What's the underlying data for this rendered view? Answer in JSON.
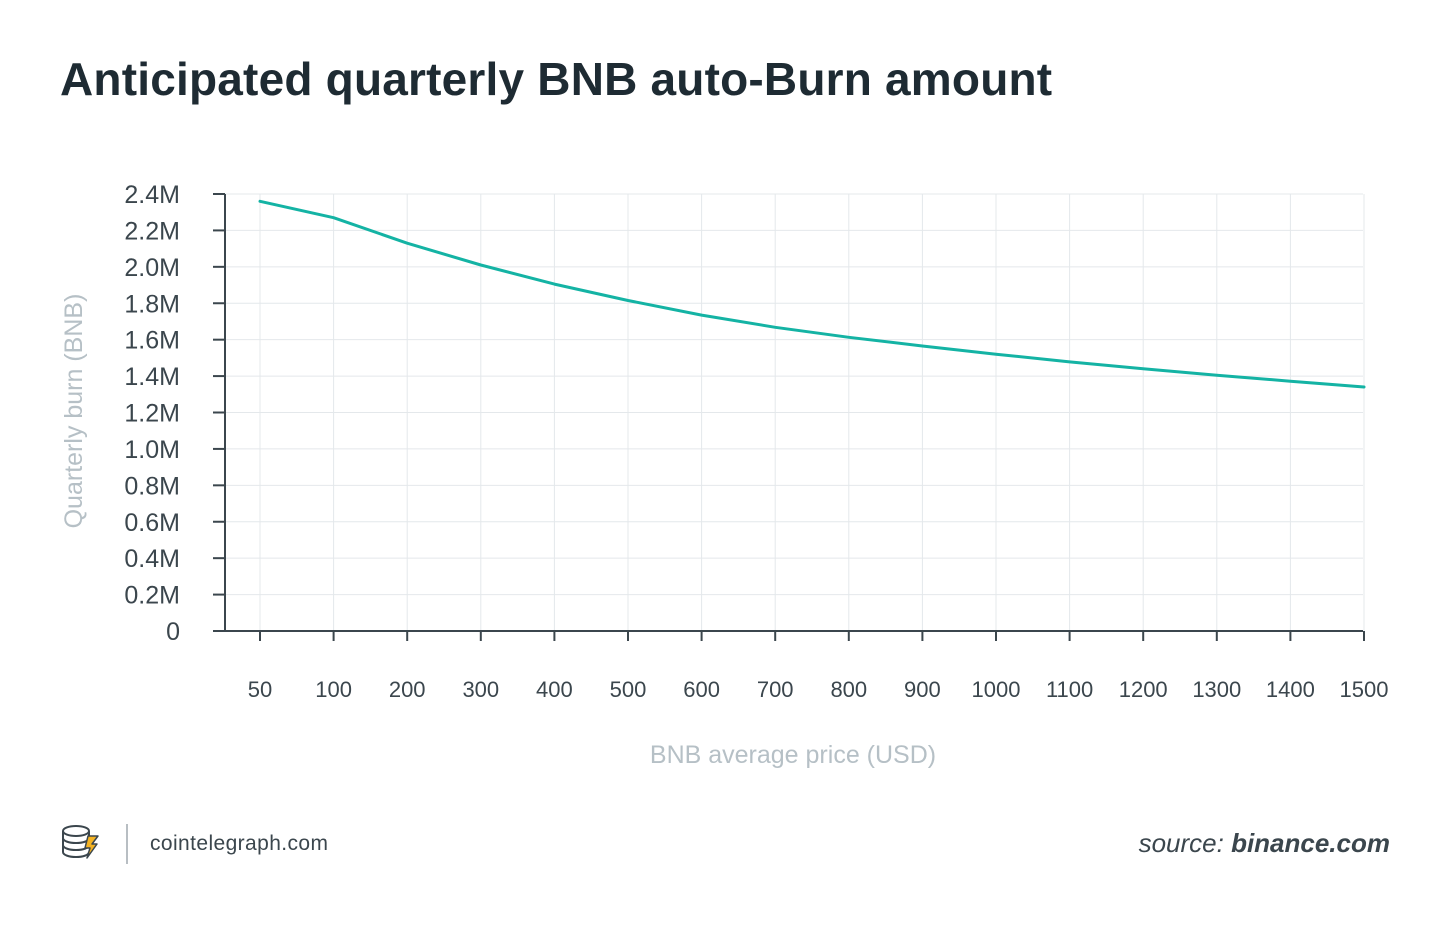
{
  "title": "Anticipated quarterly BNB auto-Burn amount",
  "footer": {
    "site": "cointelegraph.com",
    "source_prefix": "source:",
    "source_name": "binance.com"
  },
  "colors": {
    "line": "#14b3a4",
    "axis": "#3b464d",
    "grid": "#e4e8eb",
    "axis_label": "#b6c0c6"
  },
  "chart_data": {
    "type": "line",
    "title": "Anticipated quarterly BNB auto-Burn amount",
    "xlabel": "BNB average price (USD)",
    "ylabel": "Quarterly burn (BNB)",
    "x": [
      50,
      100,
      200,
      300,
      400,
      500,
      600,
      700,
      800,
      900,
      1000,
      1100,
      1200,
      1300,
      1400,
      1500
    ],
    "x_tick_labels": [
      "50",
      "100",
      "200",
      "300",
      "400",
      "500",
      "600",
      "700",
      "800",
      "900",
      "1000",
      "1100",
      "1200",
      "1300",
      "1400",
      "1500"
    ],
    "x_scale": "categorical-equal-spacing",
    "series": [
      {
        "values": [
          2360000,
          2270000,
          2130000,
          2010000,
          1905000,
          1815000,
          1735000,
          1668000,
          1613000,
          1565000,
          1520000,
          1478000,
          1440000,
          1405000,
          1372000,
          1340000
        ]
      }
    ],
    "y_ticks": [
      0,
      200000,
      400000,
      600000,
      800000,
      1000000,
      1200000,
      1400000,
      1600000,
      1800000,
      2000000,
      2200000,
      2400000
    ],
    "y_tick_labels": [
      "0",
      "0.2M",
      "0.4M",
      "0.6M",
      "0.8M",
      "1.0M",
      "1.2M",
      "1.4M",
      "1.6M",
      "1.8M",
      "2.0M",
      "2.2M",
      "2.4M"
    ],
    "ylim": [
      0,
      2400000
    ],
    "grid": true
  }
}
